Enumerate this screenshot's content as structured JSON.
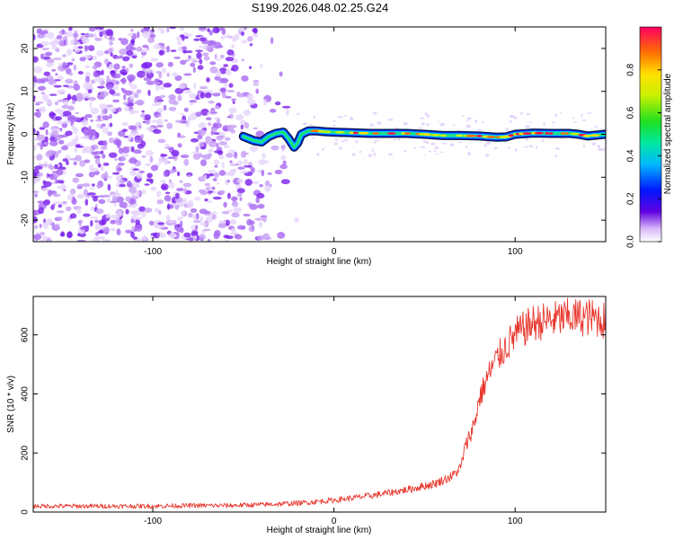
{
  "title": "S199.2026.048.02.25.G24",
  "chart_data": [
    {
      "type": "heatmap",
      "title": "S199.2026.048.02.25.G24",
      "xlabel": "Height of straight line (km)",
      "ylabel": "Frequency (Hz)",
      "xlim": [
        -166,
        150
      ],
      "ylim": [
        -25,
        25
      ],
      "xticks": [
        -100,
        0,
        100
      ],
      "xtick_labels": [
        "-100",
        "0",
        "100"
      ],
      "yticks": [
        -20,
        -10,
        0,
        10,
        20
      ],
      "ytick_labels": [
        "-20",
        "-10",
        "0",
        "10",
        "20"
      ],
      "colorbar": {
        "label": "Normalized spectral amplitude",
        "range": [
          0,
          1
        ],
        "ticks": [
          0,
          0.2,
          0.4,
          0.6,
          0.8
        ],
        "tick_labels": [
          "0.0",
          "0.2",
          "0.4",
          "0.6",
          "0.8"
        ]
      },
      "signal_ridge": {
        "x": [
          -50,
          -44,
          -40,
          -36,
          -32,
          -28,
          -25,
          -22,
          -20,
          -18,
          -14,
          -10,
          -5,
          0,
          20,
          40,
          50,
          60,
          70,
          80,
          90,
          95,
          100,
          110,
          120,
          130,
          135,
          140,
          150
        ],
        "freq": [
          -0.5,
          -1.5,
          -1.8,
          -0.5,
          0.2,
          0.5,
          -1,
          -3,
          -2,
          0,
          0.8,
          0.8,
          0.6,
          0.5,
          0.2,
          0.2,
          0,
          -0.3,
          -0.3,
          -0.4,
          -0.7,
          -0.6,
          0,
          0.3,
          0.2,
          0.2,
          0,
          -0.4,
          0
        ]
      },
      "noise_region": {
        "x_range": [
          -166,
          -20
        ],
        "freq_range": [
          -25,
          25
        ]
      }
    },
    {
      "type": "line",
      "xlabel": "Height of straight line (km)",
      "ylabel": "SNR (10 * v/v)",
      "xlim": [
        -166,
        150
      ],
      "ylim": [
        0,
        730
      ],
      "xticks": [
        -100,
        0,
        100
      ],
      "xtick_labels": [
        "-100",
        "0",
        "100"
      ],
      "yticks": [
        0,
        200,
        400,
        600
      ],
      "ytick_labels": [
        "0",
        "200",
        "400",
        "600"
      ],
      "color": "#e8372d",
      "series": [
        {
          "name": "SNR",
          "x": [
            -166,
            -140,
            -120,
            -100,
            -80,
            -60,
            -40,
            -20,
            0,
            20,
            40,
            55,
            65,
            70,
            72,
            75,
            78,
            80,
            85,
            90,
            95,
            100,
            105,
            110,
            120,
            130,
            140,
            150
          ],
          "values": [
            20,
            20,
            20,
            20,
            22,
            22,
            25,
            30,
            40,
            55,
            75,
            95,
            120,
            150,
            210,
            260,
            310,
            380,
            460,
            520,
            560,
            600,
            620,
            640,
            650,
            660,
            660,
            650
          ]
        }
      ]
    }
  ]
}
